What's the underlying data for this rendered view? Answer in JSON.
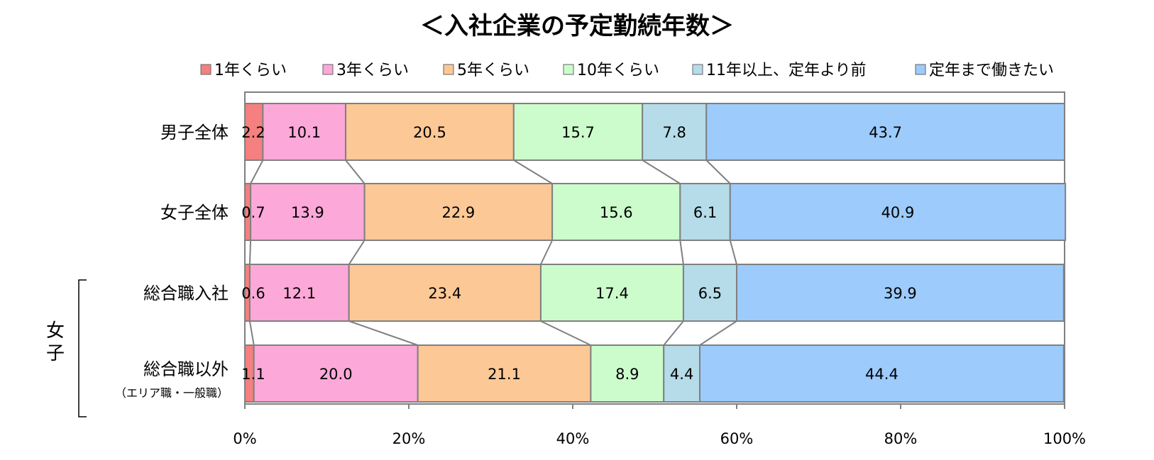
{
  "chart_data": {
    "type": "bar",
    "orientation": "horizontal",
    "stacked": "percent",
    "title": "＜入社企業の予定勤続年数＞",
    "categories": [
      "男子全体",
      "女子全体",
      "総合職入社",
      "総合職以外"
    ],
    "category_sublabels": [
      "",
      "",
      "",
      "（エリア職・一般職）"
    ],
    "group_label": "女子",
    "grouped_categories": [
      "総合職入社",
      "総合職以外"
    ],
    "series": [
      {
        "name": "1年くらい",
        "color": "#f4807f",
        "values": [
          2.2,
          0.7,
          0.6,
          1.1
        ]
      },
      {
        "name": "3年くらい",
        "color": "#fca8d9",
        "values": [
          10.1,
          13.9,
          12.1,
          20.0
        ]
      },
      {
        "name": "5年くらい",
        "color": "#fcc896",
        "values": [
          20.5,
          22.9,
          23.4,
          21.1
        ]
      },
      {
        "name": "10年くらい",
        "color": "#ccfccc",
        "values": [
          15.7,
          15.6,
          17.4,
          8.9
        ]
      },
      {
        "name": "11年以上、定年より前",
        "color": "#b5dce8",
        "values": [
          7.8,
          6.1,
          6.5,
          4.4
        ]
      },
      {
        "name": "定年まで働きたい",
        "color": "#9ccbfc",
        "values": [
          43.7,
          40.9,
          39.9,
          44.4
        ]
      }
    ],
    "x_ticks": [
      "0%",
      "20%",
      "40%",
      "60%",
      "80%",
      "100%"
    ],
    "xlim": [
      0,
      100
    ],
    "legend_position": "top",
    "series_lines": true,
    "grid": false
  }
}
